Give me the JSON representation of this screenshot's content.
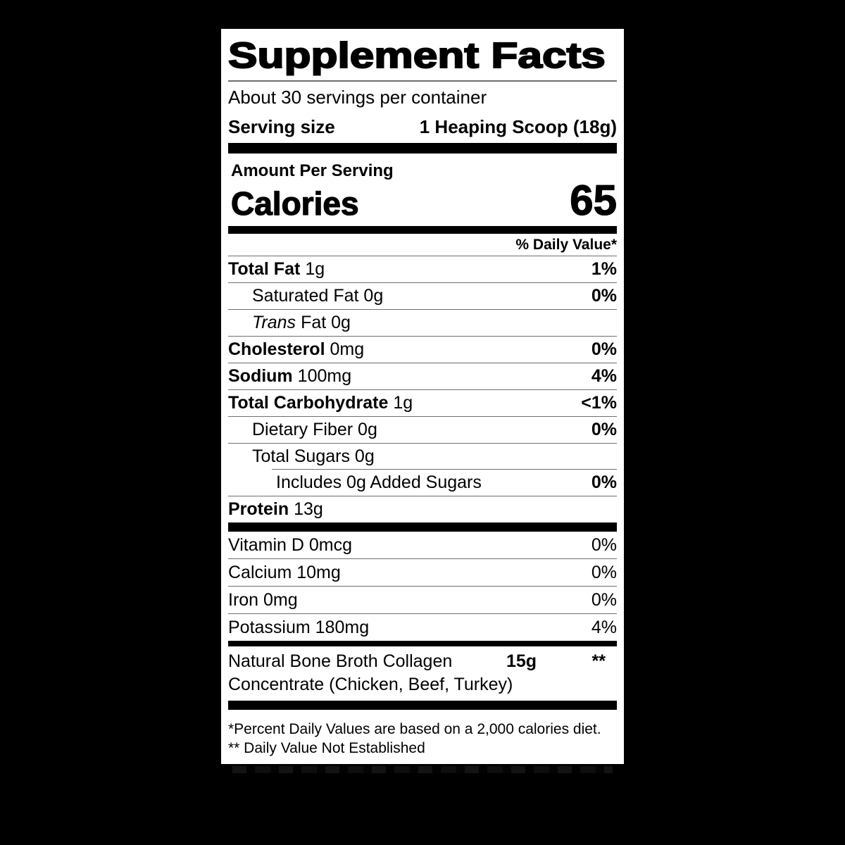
{
  "page": {
    "background": "#000000"
  },
  "label": {
    "bg": "#ffffff",
    "text_color": "#000000",
    "title": "Supplement Facts",
    "servings_per_container": "About 30 servings per container",
    "serving_size_label": "Serving size",
    "serving_size_value": "1 Heaping Scoop (18g)",
    "amount_per_serving": "Amount Per Serving",
    "calories_label": "Calories",
    "calories_value": "65",
    "daily_value_header": "% Daily Value*",
    "rows": [
      {
        "bold": "Total Fat",
        "italic": "",
        "text": "1g",
        "dv": "1%"
      },
      {
        "bold": "",
        "italic": "",
        "text": "Saturated Fat 0g",
        "dv": "0%"
      },
      {
        "bold": "",
        "italic": "Trans",
        "text": "Fat 0g",
        "dv": ""
      },
      {
        "bold": "Cholesterol",
        "italic": "",
        "text": "0mg",
        "dv": "0%"
      },
      {
        "bold": "Sodium",
        "italic": "",
        "text": "100mg",
        "dv": "4%"
      },
      {
        "bold": "Total Carbohydrate",
        "italic": "",
        "text": "1g",
        "dv": "<1%"
      },
      {
        "bold": "",
        "italic": "",
        "text": "Dietary Fiber 0g",
        "dv": "0%"
      },
      {
        "bold": "",
        "italic": "",
        "text": "Total Sugars 0g",
        "dv": ""
      },
      {
        "bold": "",
        "italic": "",
        "text": "Includes 0g Added Sugars",
        "dv": "0%"
      },
      {
        "bold": "Protein",
        "italic": "",
        "text": "13g",
        "dv": ""
      }
    ],
    "vitamin_rows": [
      {
        "text": "Vitamin D 0mcg",
        "dv": "0%"
      },
      {
        "text": "Calcium 10mg",
        "dv": "0%"
      },
      {
        "text": "Iron 0mg",
        "dv": "0%"
      },
      {
        "text": "Potassium 180mg",
        "dv": "4%"
      }
    ],
    "collagen": {
      "name_line1": "Natural Bone Broth Collagen",
      "name_line2": "Concentrate (Chicken, Beef, Turkey)",
      "amount": "15g",
      "dv": "**"
    },
    "footnotes": [
      "*Percent Daily Values are based on a 2,000 calories diet.",
      "** Daily Value Not Established"
    ]
  }
}
